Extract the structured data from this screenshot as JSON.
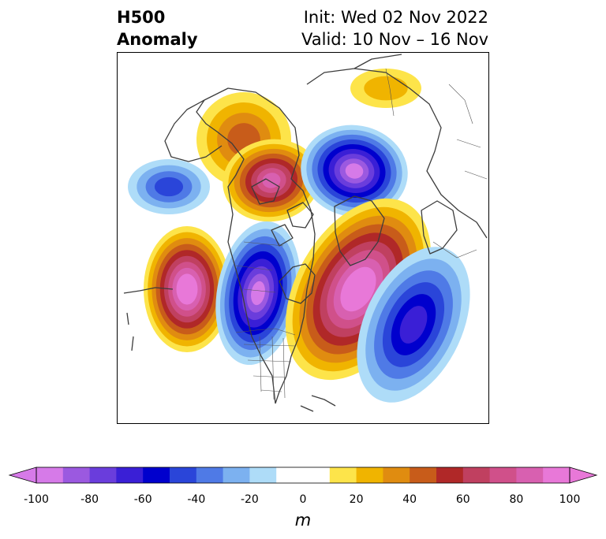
{
  "header": {
    "title_line1": "H500",
    "title_line2": "Anomaly",
    "init_text": "Init: Wed 02 Nov 2022",
    "valid_text": "Valid: 10 Nov – 16 Nov"
  },
  "map": {
    "field": "500 hPa geopotential height anomaly",
    "anomaly_centers": [
      {
        "name": "western-arctic-ridge",
        "sign": "positive",
        "max_value": 40
      },
      {
        "name": "canadian-arctic-ridge",
        "sign": "positive",
        "max_value": 80
      },
      {
        "name": "siberian-arctic-trough",
        "sign": "negative",
        "max_value": -90
      },
      {
        "name": "far-north-ridge",
        "sign": "positive",
        "max_value": 20
      },
      {
        "name": "north-pacific-ridge",
        "sign": "positive",
        "max_value": 100
      },
      {
        "name": "western-north-america-trough",
        "sign": "negative",
        "max_value": -90
      },
      {
        "name": "eastern-north-america-ridge",
        "sign": "positive",
        "max_value": 100
      },
      {
        "name": "north-atlantic-trough",
        "sign": "negative",
        "max_value": -60
      },
      {
        "name": "dateline-trough",
        "sign": "negative",
        "max_value": -40
      }
    ]
  },
  "colorbar": {
    "unit": "m",
    "ticks": [
      "-100",
      "-80",
      "-60",
      "-40",
      "-20",
      "0",
      "20",
      "40",
      "60",
      "80",
      "100"
    ],
    "bounds": [
      -100,
      100
    ],
    "extend": "both",
    "colors": [
      "#d67ae8",
      "#9b59e0",
      "#6a3ddc",
      "#3a1fd6",
      "#0000cd",
      "#2a45d9",
      "#4f7ae6",
      "#7cb1f0",
      "#aedcf8",
      "#ffffff",
      "#ffffff",
      "#fde44a",
      "#f0b400",
      "#e08c10",
      "#c85c1a",
      "#b02828",
      "#c04060",
      "#d0508a",
      "#d860b0",
      "#e878d8"
    ],
    "min_color": "#d67ae8",
    "max_color": "#e878d8"
  }
}
